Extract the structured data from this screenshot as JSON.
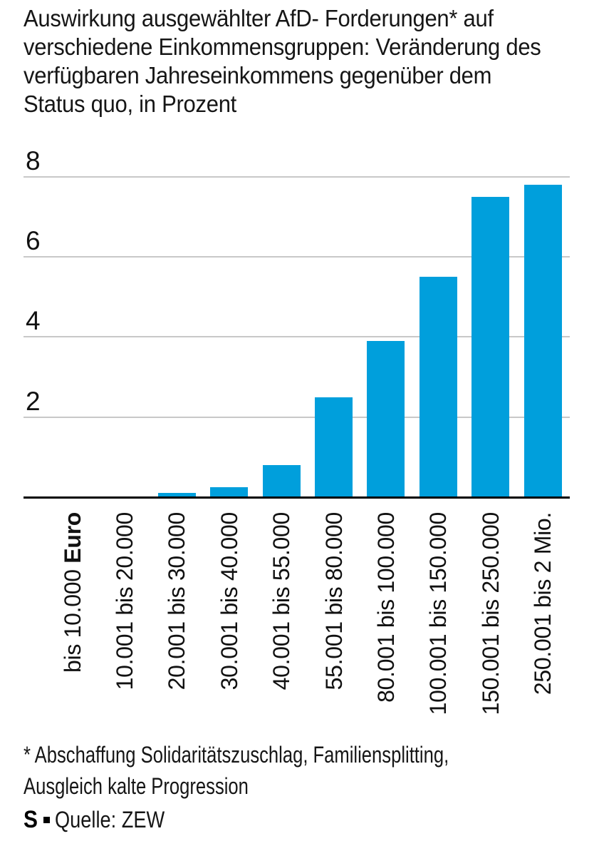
{
  "header": {
    "title_lines": [
      "Auswirkung ausgewählter AfD- Forderungen* auf",
      "verschiedene Einkommensgruppen: Veränderung des",
      "verfügbaren Jahreseinkommens gegenüber dem",
      "Status quo, in Prozent"
    ]
  },
  "chart_data": {
    "type": "bar",
    "title": "Auswirkung ausgewählter AfD- Forderungen* auf verschiedene Einkommensgruppen: Veränderung des verfügbaren Jahreseinkommens gegenüber dem Status quo, in Prozent",
    "categories": [
      "bis 10.000 Euro",
      "10.001 bis 20.000",
      "20.001 bis 30.000",
      "30.001 bis 40.000",
      "40.001 bis 55.000",
      "55.001 bis 80.000",
      "80.001 bis 100.000",
      "100.001 bis 150.000",
      "150.001 bis 250.000",
      "250.001 bis 2 Mio."
    ],
    "values": [
      0,
      0,
      0.1,
      0.25,
      0.8,
      2.5,
      3.9,
      5.5,
      7.5,
      7.8
    ],
    "unit": "Prozent",
    "ylim": [
      0,
      8
    ],
    "ytick_values": [
      8,
      6,
      4,
      2
    ],
    "grid": true,
    "legend": false,
    "bar_color": "#009FDC",
    "gridline_color": "#c8c8c8",
    "axis_color": "#000000",
    "first_category_bold_word": "Euro"
  },
  "footnote": {
    "lines": [
      "* Abschaffung Solidaritätszuschlag, Familiensplitting,",
      "Ausgleich kalte Progression"
    ]
  },
  "source": {
    "logo_letter": "S",
    "label": "Quelle: ZEW"
  }
}
